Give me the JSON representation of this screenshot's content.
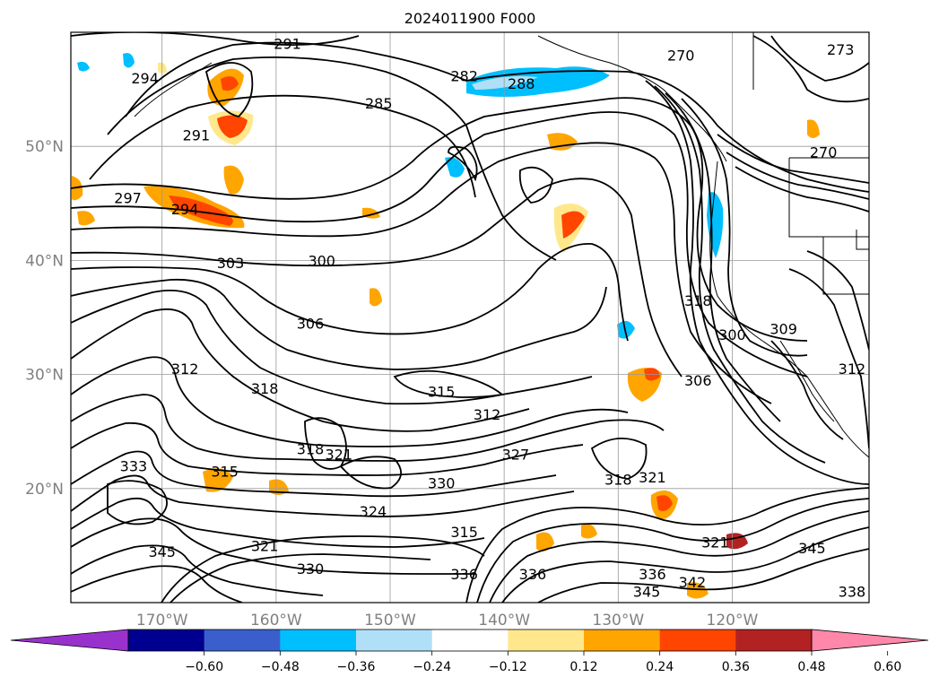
{
  "title": "2024011900 F000",
  "map": {
    "lat_labels": [
      {
        "lat": 50,
        "text": "50°N"
      },
      {
        "lat": 40,
        "text": "40°N"
      },
      {
        "lat": 30,
        "text": "30°N"
      },
      {
        "lat": 20,
        "text": "20°N"
      }
    ],
    "lon_labels": [
      {
        "lon": -170,
        "text": "170°W"
      },
      {
        "lon": -160,
        "text": "160°W"
      },
      {
        "lon": -150,
        "text": "150°W"
      },
      {
        "lon": -140,
        "text": "140°W"
      },
      {
        "lon": -130,
        "text": "130°W"
      },
      {
        "lon": -120,
        "text": "120°W"
      }
    ],
    "extent": {
      "lon_min": -178,
      "lon_max": -108,
      "lat_min": 10,
      "lat_max": 60
    },
    "contour_labels": [
      {
        "lon": -159.0,
        "lat": 59.0,
        "text": "291"
      },
      {
        "lon": -171.5,
        "lat": 56.0,
        "text": "294"
      },
      {
        "lon": -167.0,
        "lat": 51.0,
        "text": "291"
      },
      {
        "lon": -143.5,
        "lat": 56.2,
        "text": "282"
      },
      {
        "lon": -138.5,
        "lat": 55.5,
        "text": "288"
      },
      {
        "lon": -151.0,
        "lat": 53.8,
        "text": "285"
      },
      {
        "lon": -110.5,
        "lat": 58.5,
        "text": "273"
      },
      {
        "lon": -112.0,
        "lat": 49.5,
        "text": "270"
      },
      {
        "lon": -173.0,
        "lat": 45.5,
        "text": "297"
      },
      {
        "lon": -168.0,
        "lat": 44.5,
        "text": "294"
      },
      {
        "lon": -164.0,
        "lat": 39.8,
        "text": "303"
      },
      {
        "lon": -156.0,
        "lat": 40.0,
        "text": "300"
      },
      {
        "lon": -157.0,
        "lat": 34.5,
        "text": "306"
      },
      {
        "lon": -123.0,
        "lat": 36.5,
        "text": "318"
      },
      {
        "lon": -120.0,
        "lat": 33.5,
        "text": "300"
      },
      {
        "lon": -115.5,
        "lat": 34.0,
        "text": "309"
      },
      {
        "lon": -168.0,
        "lat": 30.5,
        "text": "312"
      },
      {
        "lon": -161.0,
        "lat": 28.8,
        "text": "318"
      },
      {
        "lon": -145.5,
        "lat": 28.5,
        "text": "315"
      },
      {
        "lon": -141.5,
        "lat": 26.5,
        "text": "312"
      },
      {
        "lon": -123.0,
        "lat": 29.5,
        "text": "306"
      },
      {
        "lon": -157.0,
        "lat": 23.5,
        "text": "318"
      },
      {
        "lon": -154.5,
        "lat": 23.0,
        "text": "321"
      },
      {
        "lon": -139.0,
        "lat": 23.0,
        "text": "327"
      },
      {
        "lon": -145.5,
        "lat": 20.5,
        "text": "330"
      },
      {
        "lon": -151.5,
        "lat": 18.0,
        "text": "324"
      },
      {
        "lon": -127.0,
        "lat": 21.0,
        "text": "321"
      },
      {
        "lon": -130.0,
        "lat": 20.8,
        "text": "318"
      },
      {
        "lon": -121.5,
        "lat": 15.3,
        "text": "321"
      },
      {
        "lon": -143.5,
        "lat": 16.2,
        "text": "315"
      },
      {
        "lon": -172.5,
        "lat": 22.0,
        "text": "333"
      },
      {
        "lon": -164.5,
        "lat": 21.5,
        "text": "315"
      },
      {
        "lon": -170.0,
        "lat": 14.5,
        "text": "345"
      },
      {
        "lon": -113.0,
        "lat": 14.8,
        "text": "345"
      },
      {
        "lon": -137.5,
        "lat": 12.5,
        "text": "336"
      },
      {
        "lon": -127.0,
        "lat": 12.5,
        "text": "336"
      },
      {
        "lon": -143.5,
        "lat": 12.5,
        "text": "336"
      },
      {
        "lon": -157.0,
        "lat": 13.0,
        "text": "330"
      },
      {
        "lon": -161.0,
        "lat": 15.0,
        "text": "321"
      },
      {
        "lon": -123.5,
        "lat": 11.8,
        "text": "342"
      },
      {
        "lon": -127.5,
        "lat": 11.0,
        "text": "345"
      },
      {
        "lon": -109.5,
        "lat": 11.0,
        "text": "338"
      },
      {
        "lon": -109.5,
        "lat": 30.5,
        "text": "312"
      },
      {
        "lon": -124.5,
        "lat": 58.0,
        "text": "270"
      }
    ]
  },
  "colorbar": {
    "ticks": [
      "−0.60",
      "−0.48",
      "−0.36",
      "−0.24",
      "−0.12",
      "0.12",
      "0.24",
      "0.36",
      "0.48",
      "0.60"
    ],
    "colors": [
      "#9932cc",
      "#000090",
      "#3a5fcd",
      "#00bfff",
      "#b0e0f7",
      "#ffffff",
      "#ffe88c",
      "#ffa500",
      "#ff4500",
      "#b22222",
      "#ff88aa"
    ]
  }
}
